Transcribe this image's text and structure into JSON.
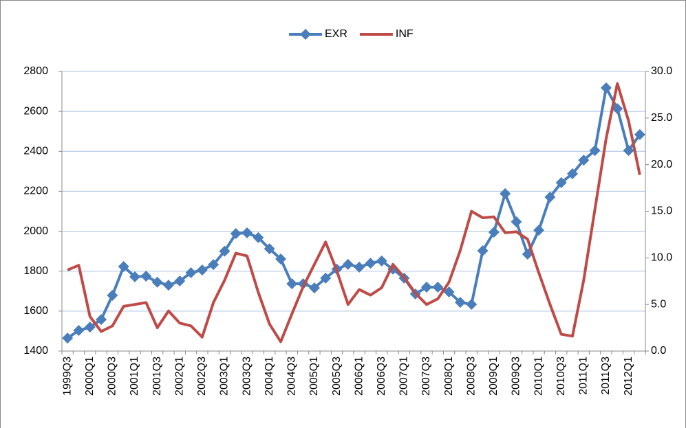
{
  "chart_data": {
    "type": "line",
    "categories": [
      "1999Q3",
      null,
      "2000Q1",
      null,
      "2000Q3",
      null,
      "2001Q1",
      null,
      "2001Q3",
      null,
      "2002Q1",
      null,
      "2002Q3",
      null,
      "2003Q1",
      null,
      "2003Q3",
      null,
      "2004Q1",
      null,
      "2004Q3",
      null,
      "2005Q1",
      null,
      "2005Q3",
      null,
      "2006Q1",
      null,
      "2006Q3",
      null,
      "2007Q1",
      null,
      "2007Q3",
      null,
      "2008Q1",
      null,
      "2008Q3",
      null,
      "2009Q1",
      null,
      "2009Q3",
      null,
      "2010Q1",
      null,
      "2010Q3",
      null,
      "2011Q1",
      null,
      "2011Q3",
      null,
      "2012Q1",
      null
    ],
    "series": [
      {
        "name": "EXR",
        "color": "#4a7ebb",
        "marker": "diamond",
        "values": [
          1465,
          1503,
          1520,
          1558,
          1679,
          1823,
          1772,
          1775,
          1745,
          1730,
          1751,
          1792,
          1806,
          1833,
          1900,
          1988,
          1992,
          1968,
          1912,
          1861,
          1737,
          1737,
          1716,
          1765,
          1810,
          1834,
          1820,
          1840,
          1851,
          1810,
          1765,
          1686,
          1720,
          1720,
          1696,
          1644,
          1634,
          1902,
          1995,
          2188,
          2047,
          1885,
          2005,
          2171,
          2243,
          2288,
          2356,
          2404,
          2718,
          2614,
          2404,
          2484
        ]
      },
      {
        "name": "INF",
        "color": "#be4b48",
        "axis": "y2",
        "values": [
          8.7,
          9.2,
          3.7,
          2.1,
          2.7,
          4.8,
          5.0,
          5.2,
          2.5,
          4.3,
          3.0,
          2.7,
          1.5,
          5.2,
          7.6,
          10.5,
          10.2,
          6.3,
          2.9,
          1.0,
          4.0,
          6.9,
          9.3,
          11.7,
          8.6,
          5.0,
          6.6,
          6.0,
          6.8,
          9.3,
          7.9,
          6.2,
          5.0,
          5.6,
          7.4,
          10.8,
          15.0,
          14.3,
          14.4,
          12.7,
          12.8,
          12.0,
          8.4,
          5.0,
          1.8,
          1.6,
          7.6,
          15.2,
          22.8,
          28.7,
          24.7,
          18.9
        ]
      }
    ],
    "ylim": [
      1400,
      2800
    ],
    "yticks": [
      1400,
      1600,
      1800,
      2000,
      2200,
      2400,
      2600,
      2800
    ],
    "y2lim": [
      0,
      30
    ],
    "y2ticks": [
      {
        "value": 0,
        "label": "0.0"
      },
      {
        "value": 5,
        "label": "5.0"
      },
      {
        "value": 10,
        "label": "10.0"
      },
      {
        "value": 15,
        "label": "15.0"
      },
      {
        "value": 20,
        "label": "20.0"
      },
      {
        "value": 25,
        "label": "25.0"
      },
      {
        "value": 30,
        "label": "30.0"
      }
    ],
    "grid": true,
    "legend": "top"
  }
}
